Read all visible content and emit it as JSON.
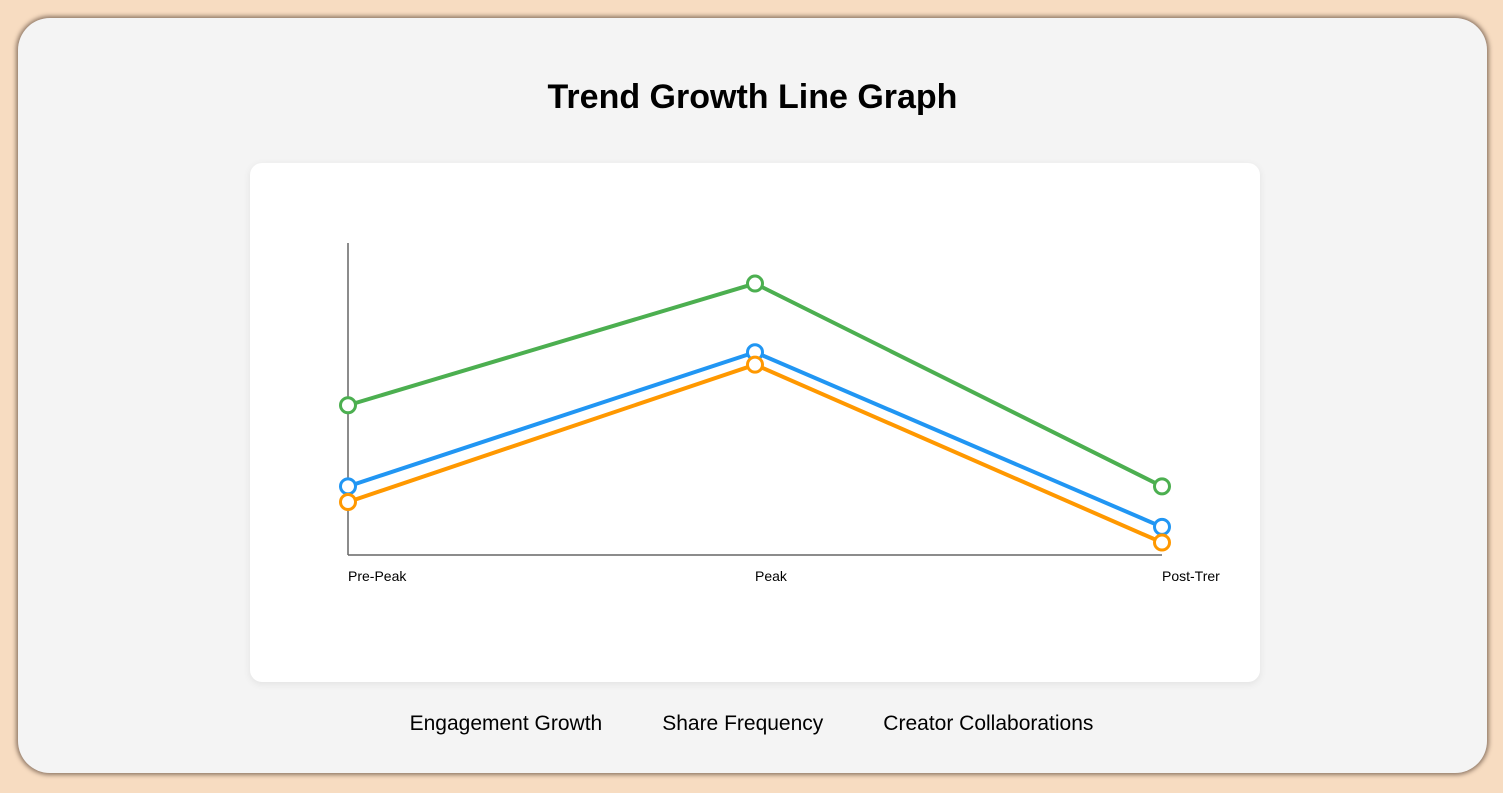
{
  "title": "Trend Growth Line Graph",
  "chart_data": {
    "type": "line",
    "title": "Trend Growth Line Graph",
    "categories": [
      "Pre-Peak",
      "Peak",
      "Post-Trend"
    ],
    "category_labels_visible": [
      "Pre-Peak",
      "Peak",
      "Post-Trer"
    ],
    "ylim": [
      0,
      100
    ],
    "grid": false,
    "y_ticks_visible": false,
    "legend_position": "bottom",
    "series": [
      {
        "name": "Engagement Growth",
        "color": "#2196f3",
        "values": [
          22,
          65,
          9
        ]
      },
      {
        "name": "Share Frequency",
        "color": "#ff9800",
        "values": [
          17,
          61,
          4
        ]
      },
      {
        "name": "Creator Collaborations",
        "color": "#4caf50",
        "values": [
          48,
          87,
          22
        ]
      }
    ]
  }
}
